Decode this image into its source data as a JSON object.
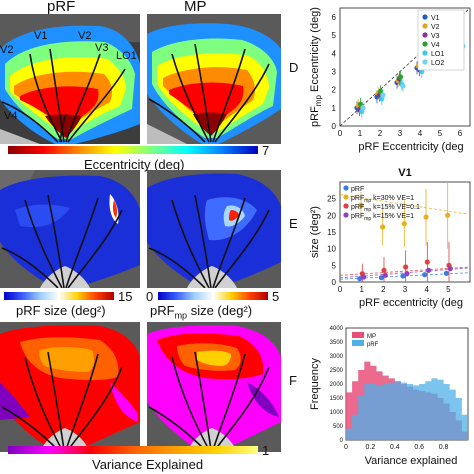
{
  "left": {
    "col_titles": [
      "pRF",
      "MP"
    ],
    "roi_labels": [
      "V1",
      "V2",
      "V3",
      "LO1",
      "V2",
      "V3",
      "V4"
    ],
    "row1": {
      "colorbar_label": "Eccentricity (deg)",
      "colorbar_max": "7"
    },
    "row2": {
      "colorbar1_label": "pRF size (deg²)",
      "colorbar1_max": "15",
      "colorbar2_min": "0",
      "colorbar2_label": "pRF",
      "colorbar2_sub": "mp",
      "colorbar2_rest": " size (deg²)",
      "colorbar2_max": "5"
    },
    "row3": {
      "colorbar_label": "Variance Explained",
      "colorbar_max": "1"
    },
    "colors": {
      "jet": [
        "#8b0000",
        "#ff0000",
        "#ff8c00",
        "#ffff00",
        "#7fff7f",
        "#00ffff",
        "#0080ff",
        "#0000c0"
      ],
      "size_cmap": [
        "#0000c8",
        "#3a5cff",
        "#9fd0ff",
        "#ffffff",
        "#ffd000",
        "#ff4000",
        "#b00000"
      ],
      "var_cmap": [
        "#8000c0",
        "#ff00ff",
        "#ff0000",
        "#ff6000",
        "#ffa000",
        "#ffd000",
        "#ffff80"
      ]
    }
  },
  "panel_letters": [
    "D",
    "E",
    "F"
  ],
  "panelD": {
    "legend": [
      "V1",
      "V2",
      "V3",
      "V4",
      "LO1",
      "LO2"
    ],
    "legend_colors": [
      "#1f5fbf",
      "#e8a020",
      "#8c2fa0",
      "#2ca02c",
      "#3ac7f0",
      "#6fd3f5"
    ],
    "yticks": [
      "0",
      "1",
      "2",
      "3",
      "4",
      "5",
      "6"
    ],
    "xticks": [
      "0",
      "1",
      "2",
      "3",
      "4",
      "5",
      "6"
    ],
    "ylabel_main": "pRF",
    "ylabel_sub": "mp",
    "ylabel_rest": " Eccentricity (deg)",
    "xlabel": "pRF Eccentricity (deg"
  },
  "panelE": {
    "title": "V1",
    "legend": [
      "pRF",
      "pRF",
      "pRF",
      "pRF"
    ],
    "legend_sub": [
      "",
      "mp",
      "mp",
      "mp"
    ],
    "legend_rest": [
      "",
      " k=30% VE=1",
      " k=15% VE=0.1",
      " k=15% VE=1"
    ],
    "legend_colors": [
      "#3a7de0",
      "#e8b020",
      "#e04040",
      "#9040c0"
    ],
    "yticks": [
      "0",
      "5",
      "10",
      "15",
      "20",
      "25"
    ],
    "xticks": [
      "0",
      "1",
      "2",
      "3",
      "4",
      "5"
    ],
    "ylabel": "size (deg²)",
    "xlabel": "pRF eccentricity (deg"
  },
  "panelF": {
    "legend": [
      "MP",
      "pRF"
    ],
    "legend_colors": [
      "#e8507a",
      "#4fb0e8"
    ],
    "yticks": [
      "0",
      "500",
      "1000",
      "1500",
      "2000",
      "2500",
      "3000",
      "3500",
      "4000"
    ],
    "xticks": [
      "0",
      "0.2",
      "0.4",
      "0.6",
      "0.8"
    ],
    "ylabel": "Frequency",
    "xlabel": "Variance explained"
  },
  "chart_data": [
    {
      "type": "scatter",
      "xlabel": "pRF Eccentricity (deg",
      "ylabel": "pRFmp Eccentricity (deg)",
      "xlim": [
        0,
        6.5
      ],
      "ylim": [
        0,
        6.5
      ],
      "x": [
        1,
        2,
        3,
        4,
        5,
        6
      ],
      "series": [
        {
          "name": "V1",
          "values": [
            1.0,
            1.6,
            2.4,
            3.2,
            4.0,
            4.8
          ]
        },
        {
          "name": "V2",
          "values": [
            1.1,
            1.8,
            2.5,
            3.3,
            4.1,
            4.7
          ]
        },
        {
          "name": "V3",
          "values": [
            0.9,
            1.7,
            2.6,
            3.1,
            4.2,
            4.9
          ]
        },
        {
          "name": "V4",
          "values": [
            1.2,
            1.9,
            2.7,
            3.4,
            3.9,
            4.6
          ]
        },
        {
          "name": "LO1",
          "values": [
            0.8,
            1.5,
            2.3,
            3.0,
            3.8,
            4.5
          ]
        },
        {
          "name": "LO2",
          "values": [
            1.0,
            1.7,
            2.2,
            3.2,
            4.0,
            4.4
          ]
        }
      ]
    },
    {
      "type": "scatter",
      "title": "V1",
      "xlabel": "pRF eccentricity (deg",
      "ylabel": "size (deg²)",
      "xlim": [
        0,
        6
      ],
      "ylim": [
        0,
        30
      ],
      "x": [
        1,
        2,
        3,
        4,
        5
      ],
      "series": [
        {
          "name": "pRF",
          "values": [
            1.0,
            1.3,
            1.8,
            2.2,
            2.6
          ]
        },
        {
          "name": "pRFmp k=30% VE=1",
          "values": [
            23.0,
            16.5,
            17.5,
            19.5,
            20.0
          ]
        },
        {
          "name": "pRFmp k=15% VE=0.1",
          "values": [
            2.5,
            3.5,
            4.5,
            6.0,
            5.0
          ]
        },
        {
          "name": "pRFmp k=15% VE=1",
          "values": [
            1.5,
            2.0,
            2.5,
            3.5,
            4.0
          ]
        }
      ]
    },
    {
      "type": "area",
      "xlabel": "Variance explained",
      "ylabel": "Frequency",
      "xlim": [
        0,
        1
      ],
      "ylim": [
        0,
        4000
      ],
      "x": [
        0.0,
        0.05,
        0.1,
        0.15,
        0.2,
        0.25,
        0.3,
        0.35,
        0.4,
        0.45,
        0.5,
        0.55,
        0.6,
        0.65,
        0.7,
        0.75,
        0.8,
        0.85,
        0.9,
        0.95
      ],
      "series": [
        {
          "name": "MP",
          "values": [
            1700,
            2100,
            2500,
            2800,
            2650,
            2450,
            2300,
            2200,
            2100,
            2000,
            1900,
            1800,
            1750,
            1700,
            1650,
            1500,
            1300,
            1000,
            700,
            300
          ]
        },
        {
          "name": "pRF",
          "values": [
            400,
            900,
            1600,
            2000,
            2000,
            1950,
            2000,
            2050,
            2100,
            2050,
            2000,
            1950,
            2000,
            2100,
            2200,
            2150,
            2000,
            1800,
            1500,
            900
          ]
        }
      ]
    }
  ]
}
